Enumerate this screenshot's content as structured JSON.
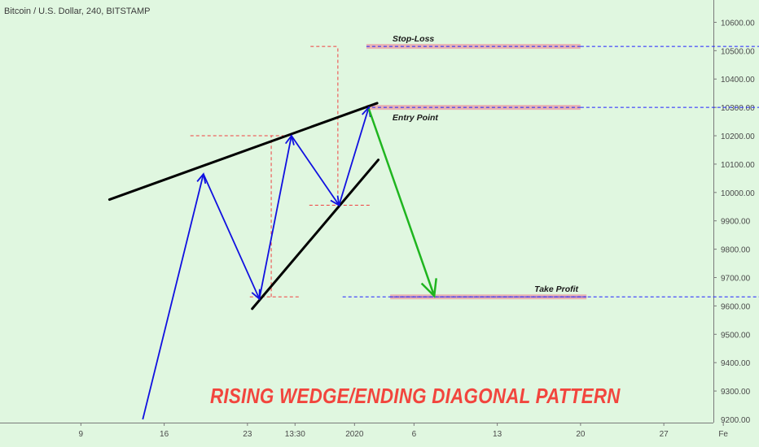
{
  "header": {
    "symbol": "Bitcoin / U.S. Dollar, 240, BITSTAMP"
  },
  "title": "RISING WEDGE/ENDING DIAGONAL PATTERN",
  "colors": {
    "background": "#e0f7e0",
    "price_path": "#1010e0",
    "wedge_lines": "#000000",
    "target_arrow": "#1fb51f",
    "dashed_levels": "#2020ff",
    "projection": "#f04040",
    "level_band": "#e8b3b3",
    "title": "#f2453d"
  },
  "chart_data": {
    "type": "line",
    "y_axis": {
      "ylim": [
        9200,
        10650
      ],
      "ticks": [
        "9300.00",
        "9400.00",
        "9500.00",
        "9600.00",
        "9700.00",
        "9800.00",
        "9900.00",
        "10000.00",
        "10100.00",
        "10200.00",
        "10300.00",
        "10400.00",
        "10500.00",
        "10600.00"
      ],
      "bottom_partial": "9200.00"
    },
    "x_axis": {
      "ticks": [
        {
          "label": "9",
          "t": 9
        },
        {
          "label": "16",
          "t": 16
        },
        {
          "label": "23",
          "t": 23
        },
        {
          "label": "13:30",
          "t": 27
        },
        {
          "label": "2020",
          "t": 32
        },
        {
          "label": "6",
          "t": 37
        },
        {
          "label": "13",
          "t": 44
        },
        {
          "label": "20",
          "t": 51
        },
        {
          "label": "27",
          "t": 58
        },
        {
          "label": "Fe",
          "t": 63
        }
      ],
      "xlim": [
        2.2,
        66
      ]
    },
    "series": [
      {
        "values": [
          {
            "t": 14.2,
            "y": 9200
          },
          {
            "t": 19.3,
            "y": 10065
          },
          {
            "t": 24.0,
            "y": 9625
          },
          {
            "t": 26.7,
            "y": 10200
          },
          {
            "t": 30.7,
            "y": 9955
          },
          {
            "t": 33.2,
            "y": 10300
          }
        ]
      }
    ],
    "wedge": {
      "upper": [
        {
          "t": 11.4,
          "y": 9975
        },
        {
          "t": 33.9,
          "y": 10315
        }
      ],
      "lower": [
        {
          "t": 23.4,
          "y": 9590
        },
        {
          "t": 34.0,
          "y": 10115
        }
      ]
    },
    "target_move": [
      {
        "t": 33.2,
        "y": 10295
      },
      {
        "t": 38.7,
        "y": 9635
      }
    ],
    "levels": [
      {
        "label": "Stop-Loss",
        "y": 10515,
        "band_t": [
          33.0,
          51.0
        ],
        "dash_t": [
          51.0,
          66
        ]
      },
      {
        "label": "Entry Point",
        "y": 10300,
        "band_t": [
          33.0,
          51.0
        ],
        "dash_t": [
          51.0,
          66
        ]
      },
      {
        "label": "Take Profit",
        "y": 9632,
        "band_t": [
          35.0,
          51.5
        ],
        "dash_t": [
          31.0,
          66
        ]
      }
    ],
    "projections": [
      {
        "t": [
          18.2,
          26.4
        ],
        "y": [
          10200,
          10200
        ]
      },
      {
        "t": [
          23.2,
          27.4
        ],
        "y": [
          9632,
          9632
        ]
      },
      {
        "t": [
          28.2,
          33.3
        ],
        "y": [
          9955,
          9955
        ]
      },
      {
        "t": [
          28.3,
          30.6
        ],
        "y": [
          10515,
          10515
        ]
      },
      {
        "t": [
          25.0,
          25.0
        ],
        "y": [
          9632,
          10200
        ]
      },
      {
        "t": [
          30.6,
          30.6
        ],
        "y": [
          9955,
          10515
        ]
      }
    ]
  }
}
